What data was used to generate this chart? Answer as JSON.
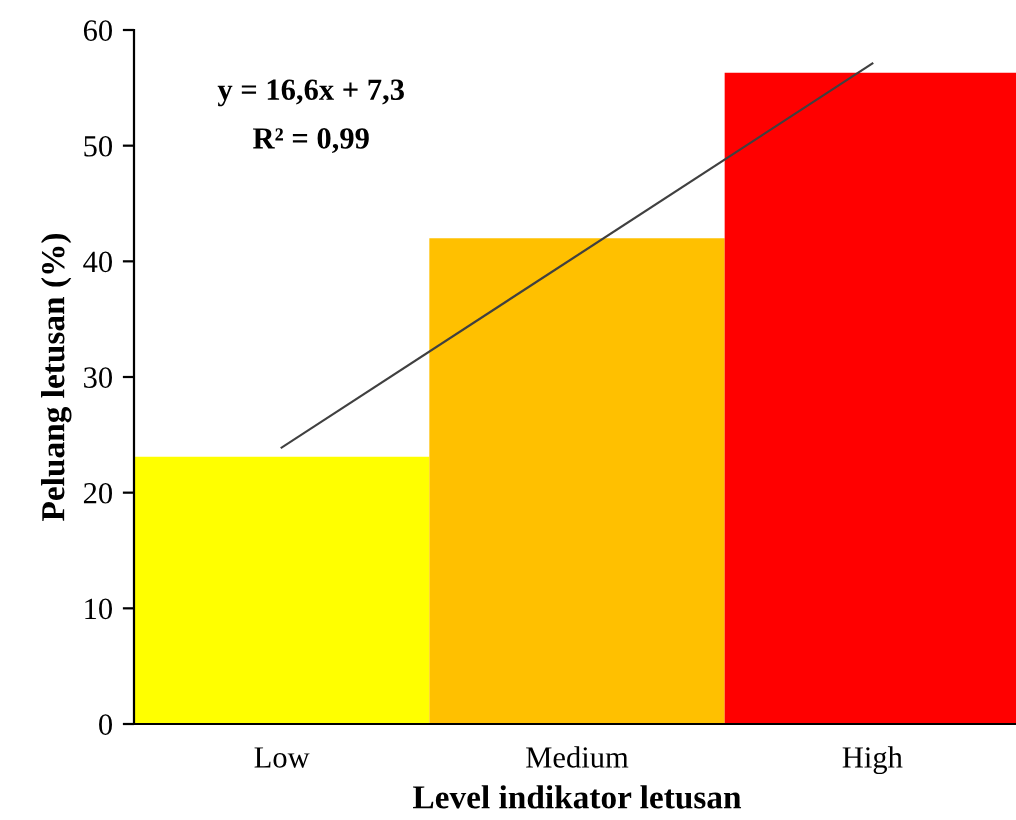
{
  "chart_data": {
    "type": "bar",
    "xlabel": "Level indikator letusan",
    "ylabel": "Peluang letusan (%)",
    "categories": [
      "Low",
      "Medium",
      "High"
    ],
    "series": [
      {
        "colors": [
          "#ffff00",
          "#ffc000",
          "#ff0000"
        ],
        "values": [
          23.1,
          42.0,
          56.3
        ]
      },
      {
        "type": "line",
        "color": "#404040",
        "x": [
          "Low",
          "High"
        ],
        "values": [
          23.9,
          57.1
        ]
      }
    ],
    "ylim": [
      0,
      60
    ],
    "yticks": [
      0,
      10,
      20,
      30,
      40,
      50,
      60
    ],
    "grid": false,
    "legend": false,
    "annotations": [
      "y = 16,6x + 7,3",
      "R² = 0,99"
    ]
  }
}
